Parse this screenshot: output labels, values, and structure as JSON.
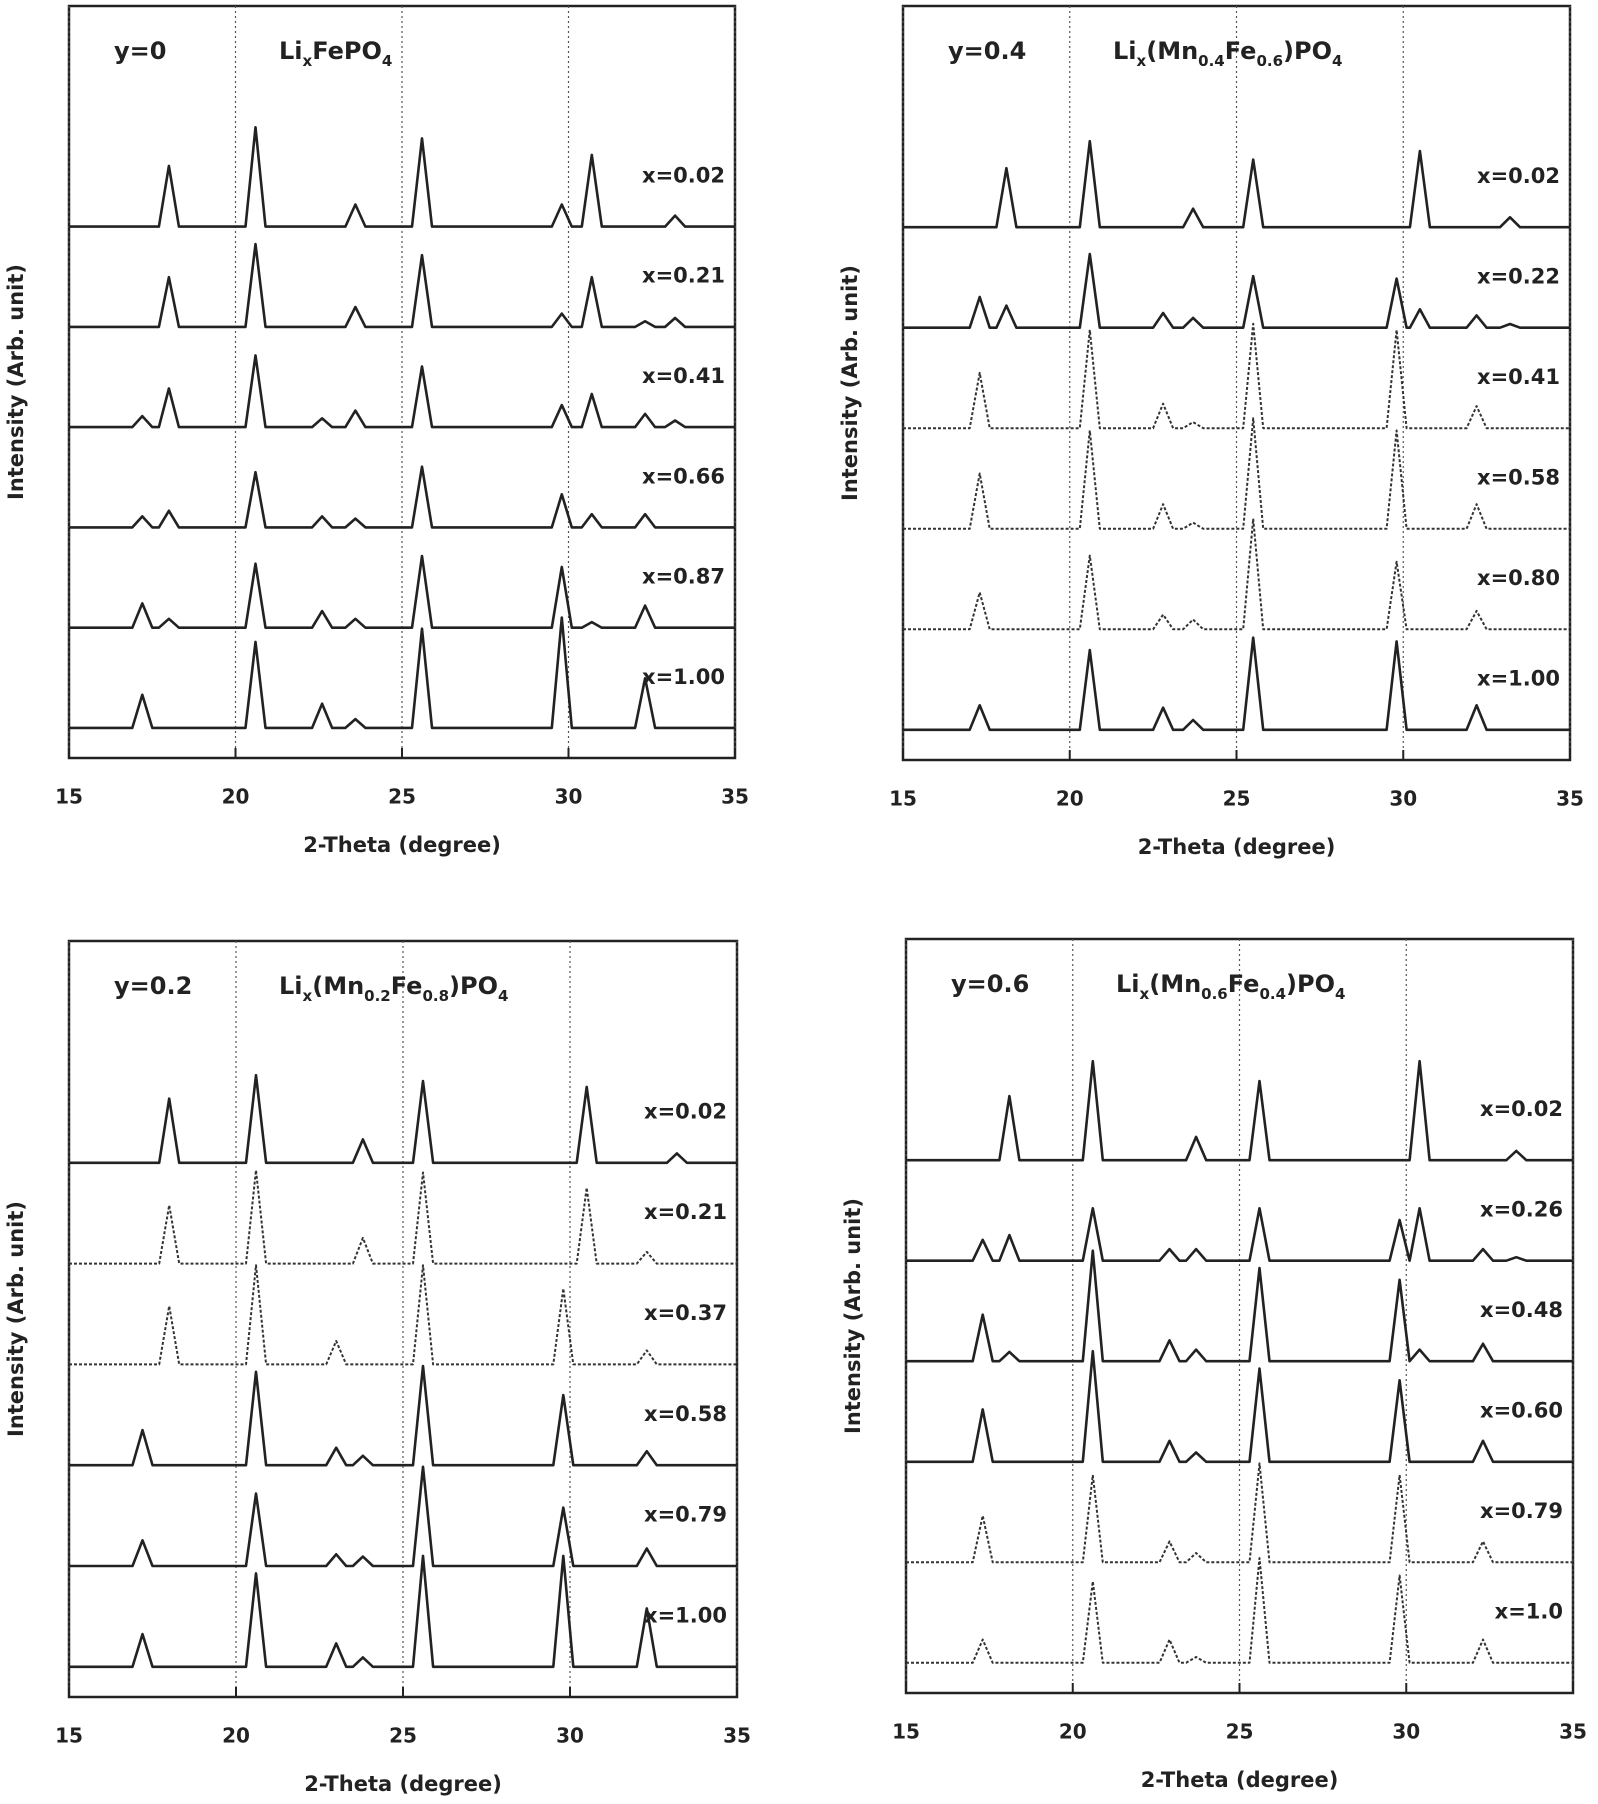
{
  "chart_data": [
    {
      "type": "line",
      "label": "y=0",
      "formula": [
        "Li",
        "x",
        "FePO",
        "4"
      ],
      "xlabel": "2-Theta (degree)",
      "ylabel": "Intensity (Arb. unit)",
      "xlim": [
        15,
        35
      ],
      "xticks": [
        15,
        20,
        25,
        30,
        35
      ],
      "grid": true,
      "x": [
        15,
        16.9,
        17.2,
        17.5,
        17.7,
        18.0,
        18.3,
        20.3,
        20.6,
        20.9,
        22.3,
        22.6,
        22.9,
        23.3,
        23.6,
        23.9,
        25.3,
        25.6,
        25.9,
        29.5,
        29.8,
        30.1,
        30.4,
        30.7,
        31.0,
        32.0,
        32.3,
        32.6,
        32.9,
        33.2,
        33.5,
        35
      ],
      "series": [
        {
          "name": "x=0.02",
          "color": "#222222",
          "style": "solid",
          "values": [
            0,
            0,
            0,
            0,
            0,
            55,
            0,
            0,
            90,
            0,
            0,
            0,
            0,
            0,
            20,
            0,
            0,
            80,
            0,
            0,
            20,
            0,
            0,
            65,
            0,
            0,
            0,
            0,
            0,
            10,
            0,
            0
          ]
        },
        {
          "name": "x=0.21",
          "color": "#222222",
          "style": "solid",
          "values": [
            0,
            0,
            0,
            0,
            0,
            45,
            0,
            0,
            75,
            0,
            0,
            0,
            0,
            0,
            18,
            0,
            0,
            65,
            0,
            0,
            12,
            0,
            0,
            45,
            0,
            0,
            5,
            0,
            0,
            8,
            0,
            0
          ]
        },
        {
          "name": "x=0.41",
          "color": "#222222",
          "style": "solid",
          "values": [
            0,
            0,
            10,
            0,
            0,
            35,
            0,
            0,
            65,
            0,
            0,
            8,
            0,
            0,
            15,
            0,
            0,
            55,
            0,
            0,
            20,
            0,
            0,
            30,
            0,
            0,
            12,
            0,
            0,
            6,
            0,
            0
          ]
        },
        {
          "name": "x=0.66",
          "color": "#222222",
          "style": "solid",
          "values": [
            0,
            0,
            10,
            0,
            0,
            15,
            0,
            0,
            50,
            0,
            0,
            10,
            0,
            0,
            8,
            0,
            0,
            55,
            0,
            0,
            30,
            0,
            0,
            12,
            0,
            0,
            12,
            0,
            0,
            0,
            0,
            0
          ]
        },
        {
          "name": "x=0.87",
          "color": "#222222",
          "style": "solid",
          "values": [
            0,
            0,
            22,
            0,
            0,
            8,
            0,
            0,
            58,
            0,
            0,
            15,
            0,
            0,
            8,
            0,
            0,
            65,
            0,
            0,
            55,
            0,
            0,
            5,
            0,
            0,
            20,
            0,
            0,
            0,
            0,
            0
          ]
        },
        {
          "name": "x=1.00",
          "color": "#222222",
          "style": "solid",
          "values": [
            0,
            0,
            30,
            0,
            0,
            0,
            0,
            0,
            78,
            0,
            0,
            22,
            0,
            0,
            8,
            0,
            0,
            90,
            0,
            0,
            100,
            0,
            0,
            0,
            0,
            0,
            45,
            0,
            0,
            0,
            0,
            0
          ]
        }
      ]
    },
    {
      "type": "line",
      "label": "y=0.4",
      "formula": [
        "Li",
        "x",
        "(Mn",
        "0.4",
        "Fe",
        "0.6",
        ")PO",
        "4"
      ],
      "xlabel": "2-Theta (degree)",
      "ylabel": "Intensity (Arb. unit)",
      "xlim": [
        15,
        35
      ],
      "xticks": [
        15,
        20,
        25,
        30,
        35
      ],
      "grid": true,
      "x": [
        15,
        17.0,
        17.3,
        17.6,
        17.8,
        18.1,
        18.4,
        20.3,
        20.6,
        20.9,
        22.5,
        22.8,
        23.1,
        23.4,
        23.7,
        24.0,
        25.2,
        25.5,
        25.8,
        29.5,
        29.8,
        30.1,
        30.2,
        30.5,
        30.8,
        31.9,
        32.2,
        32.5,
        32.9,
        33.2,
        33.5,
        35
      ],
      "series": [
        {
          "name": "x=0.02",
          "color": "#222222",
          "style": "solid",
          "values": [
            0,
            0,
            0,
            0,
            0,
            48,
            0,
            0,
            70,
            0,
            0,
            0,
            0,
            0,
            15,
            0,
            0,
            55,
            0,
            0,
            0,
            0,
            0,
            62,
            0,
            0,
            0,
            0,
            0,
            8,
            0,
            0
          ]
        },
        {
          "name": "x=0.22",
          "color": "#222222",
          "style": "solid",
          "values": [
            0,
            0,
            25,
            0,
            0,
            18,
            0,
            0,
            60,
            0,
            0,
            12,
            0,
            0,
            8,
            0,
            0,
            42,
            0,
            0,
            40,
            0,
            0,
            15,
            0,
            0,
            10,
            0,
            0,
            3,
            0,
            0
          ]
        },
        {
          "name": "x=0.41",
          "color": "#333333",
          "style": "dotted",
          "values": [
            0,
            0,
            45,
            0,
            0,
            0,
            0,
            0,
            80,
            0,
            0,
            20,
            0,
            0,
            5,
            0,
            0,
            85,
            0,
            0,
            80,
            0,
            0,
            0,
            0,
            0,
            18,
            0,
            0,
            0,
            0,
            0
          ]
        },
        {
          "name": "x=0.58",
          "color": "#333333",
          "style": "dotted",
          "values": [
            0,
            0,
            45,
            0,
            0,
            0,
            0,
            0,
            80,
            0,
            0,
            20,
            0,
            0,
            5,
            0,
            0,
            90,
            0,
            0,
            80,
            0,
            0,
            0,
            0,
            0,
            20,
            0,
            0,
            0,
            0,
            0
          ]
        },
        {
          "name": "x=0.80",
          "color": "#333333",
          "style": "dotted",
          "values": [
            0,
            0,
            30,
            0,
            0,
            0,
            0,
            0,
            60,
            0,
            0,
            12,
            0,
            0,
            8,
            0,
            0,
            90,
            0,
            0,
            55,
            0,
            0,
            0,
            0,
            0,
            15,
            0,
            0,
            0,
            0,
            0
          ]
        },
        {
          "name": "x=1.00",
          "color": "#222222",
          "style": "solid",
          "values": [
            0,
            0,
            20,
            0,
            0,
            0,
            0,
            0,
            65,
            0,
            0,
            18,
            0,
            0,
            8,
            0,
            0,
            75,
            0,
            0,
            72,
            0,
            0,
            0,
            0,
            0,
            20,
            0,
            0,
            0,
            0,
            0
          ]
        }
      ]
    },
    {
      "type": "line",
      "label": "y=0.2",
      "formula": [
        "Li",
        "x",
        "(Mn",
        "0.2",
        "Fe",
        "0.8",
        ")PO",
        "4"
      ],
      "xlabel": "2-Theta (degree)",
      "ylabel": "Intensity (Arb. unit)",
      "xlim": [
        15,
        35
      ],
      "xticks": [
        15,
        20,
        25,
        30,
        35
      ],
      "grid": true,
      "x": [
        15,
        16.9,
        17.2,
        17.5,
        17.7,
        18.0,
        18.3,
        20.3,
        20.6,
        20.9,
        22.7,
        23.0,
        23.3,
        23.5,
        23.8,
        24.1,
        25.3,
        25.6,
        25.9,
        29.5,
        29.8,
        30.1,
        30.2,
        30.5,
        30.8,
        32.0,
        32.3,
        32.6,
        32.9,
        33.2,
        33.5,
        35
      ],
      "series": [
        {
          "name": "x=0.02",
          "color": "#222222",
          "style": "solid",
          "values": [
            0,
            0,
            0,
            0,
            0,
            55,
            0,
            0,
            75,
            0,
            0,
            0,
            0,
            0,
            20,
            0,
            0,
            70,
            0,
            0,
            0,
            0,
            0,
            65,
            0,
            0,
            0,
            0,
            0,
            8,
            0,
            0
          ]
        },
        {
          "name": "x=0.21",
          "color": "#333333",
          "style": "dotted",
          "values": [
            0,
            0,
            0,
            0,
            0,
            50,
            0,
            0,
            80,
            0,
            0,
            0,
            0,
            0,
            22,
            0,
            0,
            78,
            0,
            0,
            0,
            0,
            0,
            65,
            0,
            0,
            10,
            0,
            0,
            0,
            0,
            0
          ]
        },
        {
          "name": "x=0.37",
          "color": "#333333",
          "style": "dotted",
          "values": [
            0,
            0,
            0,
            0,
            0,
            50,
            0,
            0,
            85,
            0,
            0,
            20,
            0,
            0,
            0,
            0,
            0,
            85,
            0,
            0,
            65,
            0,
            0,
            0,
            0,
            0,
            12,
            0,
            0,
            0,
            0,
            0
          ]
        },
        {
          "name": "x=0.58",
          "color": "#222222",
          "style": "solid",
          "values": [
            0,
            0,
            30,
            0,
            0,
            0,
            0,
            0,
            80,
            0,
            0,
            15,
            0,
            0,
            8,
            0,
            0,
            85,
            0,
            0,
            60,
            0,
            0,
            0,
            0,
            0,
            12,
            0,
            0,
            0,
            0,
            0
          ]
        },
        {
          "name": "x=0.79",
          "color": "#222222",
          "style": "solid",
          "values": [
            0,
            0,
            22,
            0,
            0,
            0,
            0,
            0,
            62,
            0,
            0,
            10,
            0,
            0,
            8,
            0,
            0,
            85,
            0,
            0,
            50,
            0,
            0,
            0,
            0,
            0,
            15,
            0,
            0,
            0,
            0,
            0
          ]
        },
        {
          "name": "x=1.00",
          "color": "#222222",
          "style": "solid",
          "values": [
            0,
            0,
            28,
            0,
            0,
            0,
            0,
            0,
            80,
            0,
            0,
            20,
            0,
            0,
            8,
            0,
            0,
            95,
            0,
            0,
            95,
            0,
            0,
            0,
            0,
            0,
            50,
            0,
            0,
            0,
            0,
            0
          ]
        }
      ]
    },
    {
      "type": "line",
      "label": "y=0.6",
      "formula": [
        "Li",
        "x",
        "(Mn",
        "0.6",
        "Fe",
        "0.4",
        ")PO",
        "4"
      ],
      "xlabel": "2-Theta (degree)",
      "ylabel": "Intensity (Arb. unit)",
      "xlim": [
        15,
        35
      ],
      "xticks": [
        15,
        20,
        25,
        30,
        35
      ],
      "grid": true,
      "x": [
        15,
        17.0,
        17.3,
        17.6,
        17.8,
        18.1,
        18.4,
        20.3,
        20.6,
        20.9,
        22.6,
        22.9,
        23.2,
        23.4,
        23.7,
        24.0,
        25.3,
        25.6,
        25.9,
        29.5,
        29.8,
        30.1,
        30.1,
        30.4,
        30.7,
        32.0,
        32.3,
        32.6,
        33.0,
        33.3,
        33.6,
        35
      ],
      "series": [
        {
          "name": "x=0.02",
          "color": "#222222",
          "style": "solid",
          "values": [
            0,
            0,
            0,
            0,
            0,
            55,
            0,
            0,
            85,
            0,
            0,
            0,
            0,
            0,
            20,
            0,
            0,
            68,
            0,
            0,
            0,
            0,
            0,
            85,
            0,
            0,
            0,
            0,
            0,
            8,
            0,
            0
          ]
        },
        {
          "name": "x=0.26",
          "color": "#222222",
          "style": "solid",
          "values": [
            0,
            0,
            18,
            0,
            0,
            22,
            0,
            0,
            45,
            0,
            0,
            10,
            0,
            0,
            10,
            0,
            0,
            45,
            0,
            0,
            35,
            0,
            0,
            45,
            0,
            0,
            10,
            0,
            0,
            3,
            0,
            0
          ]
        },
        {
          "name": "x=0.48",
          "color": "#222222",
          "style": "solid",
          "values": [
            0,
            0,
            40,
            0,
            0,
            8,
            0,
            0,
            95,
            0,
            0,
            18,
            0,
            0,
            10,
            0,
            0,
            80,
            0,
            0,
            70,
            0,
            0,
            10,
            0,
            0,
            15,
            0,
            0,
            0,
            0,
            0
          ]
        },
        {
          "name": "x=0.60",
          "color": "#222222",
          "style": "solid",
          "values": [
            0,
            0,
            45,
            0,
            0,
            0,
            0,
            0,
            95,
            0,
            0,
            18,
            0,
            0,
            8,
            0,
            0,
            80,
            0,
            0,
            70,
            0,
            0,
            0,
            0,
            0,
            18,
            0,
            0,
            0,
            0,
            0
          ]
        },
        {
          "name": "x=0.79",
          "color": "#333333",
          "style": "dotted",
          "values": [
            0,
            0,
            40,
            0,
            0,
            0,
            0,
            0,
            75,
            0,
            0,
            18,
            0,
            0,
            8,
            0,
            0,
            85,
            0,
            0,
            75,
            0,
            0,
            0,
            0,
            0,
            18,
            0,
            0,
            0,
            0,
            0
          ]
        },
        {
          "name": "x=1.0",
          "color": "#333333",
          "style": "dotted",
          "values": [
            0,
            0,
            20,
            0,
            0,
            0,
            0,
            0,
            70,
            0,
            0,
            20,
            0,
            0,
            5,
            0,
            0,
            90,
            0,
            0,
            75,
            0,
            0,
            0,
            0,
            0,
            20,
            0,
            0,
            0,
            0,
            0
          ]
        }
      ]
    }
  ]
}
